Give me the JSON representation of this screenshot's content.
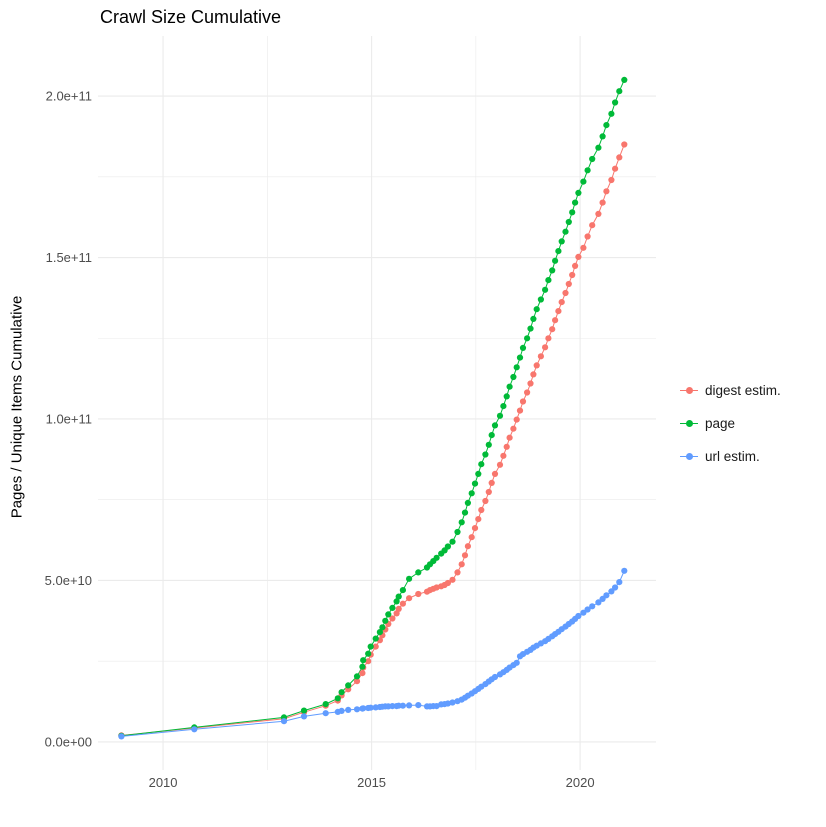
{
  "chart_data": {
    "type": "line",
    "title": "Crawl Size Cumulative",
    "xlabel": "",
    "ylabel": "Pages / Unique Items Cumulative",
    "grid": true,
    "legend_position": "right",
    "grid_color": "#ebebeb",
    "values_unit": "1e9 (billions of pages / unique items)",
    "xlim": [
      2008.44,
      2021.82
    ],
    "ylim_e9": [
      -8.7,
      218.6
    ],
    "x_axis": {
      "ticks": [
        {
          "value": 2010,
          "label": "2010"
        },
        {
          "value": 2015,
          "label": "2015"
        },
        {
          "value": 2020,
          "label": "2020"
        }
      ],
      "minor": [
        2012.5,
        2017.5
      ]
    },
    "y_axis": {
      "ticks": [
        {
          "value": 0,
          "label": "0.0e+00"
        },
        {
          "value": 50,
          "label": "5.0e+10"
        },
        {
          "value": 100,
          "label": "1.0e+11"
        },
        {
          "value": 150,
          "label": "1.5e+11"
        },
        {
          "value": 200,
          "label": "2.0e+11"
        }
      ],
      "minor": [
        25,
        75,
        125,
        175
      ]
    },
    "x": [
      2009.0,
      2010.75,
      2012.9,
      2013.38,
      2013.9,
      2014.19,
      2014.28,
      2014.44,
      2014.65,
      2014.78,
      2014.8,
      2014.92,
      2014.98,
      2015.1,
      2015.2,
      2015.26,
      2015.33,
      2015.4,
      2015.5,
      2015.6,
      2015.65,
      2015.75,
      2015.9,
      2016.12,
      2016.33,
      2016.4,
      2016.48,
      2016.56,
      2016.67,
      2016.75,
      2016.83,
      2016.94,
      2017.06,
      2017.16,
      2017.24,
      2017.31,
      2017.4,
      2017.48,
      2017.56,
      2017.63,
      2017.73,
      2017.81,
      2017.88,
      2017.96,
      2018.08,
      2018.16,
      2018.24,
      2018.31,
      2018.4,
      2018.48,
      2018.56,
      2018.63,
      2018.73,
      2018.81,
      2018.88,
      2018.96,
      2019.06,
      2019.16,
      2019.24,
      2019.33,
      2019.4,
      2019.48,
      2019.56,
      2019.65,
      2019.73,
      2019.81,
      2019.88,
      2019.96,
      2020.08,
      2020.18,
      2020.29,
      2020.44,
      2020.54,
      2020.63,
      2020.75,
      2020.84,
      2020.94,
      2021.06
    ],
    "series": [
      {
        "name": "digest estim.",
        "color": "#F8766D",
        "values": [
          2.0,
          4.3,
          7.2,
          9.2,
          11.2,
          12.8,
          14.4,
          16.3,
          18.8,
          21.3,
          23,
          25,
          27,
          29.5,
          31.5,
          33,
          34.8,
          36.5,
          38.2,
          39.8,
          41.2,
          42.8,
          44.5,
          45.8,
          46.5,
          47,
          47.4,
          47.8,
          48.2,
          48.6,
          49.2,
          50.2,
          52.5,
          55,
          57.8,
          60.6,
          63.4,
          66.2,
          69,
          71.8,
          74.6,
          77.4,
          80.2,
          83,
          85.8,
          88.6,
          91.4,
          94.2,
          97,
          99.8,
          102.6,
          105.4,
          108.2,
          111,
          113.8,
          116.6,
          119.4,
          122.2,
          125,
          127.8,
          130.6,
          133.4,
          136.2,
          139,
          141.8,
          144.6,
          147.4,
          150.2,
          153,
          156.5,
          160,
          163.5,
          167,
          170.5,
          174,
          177.5,
          181,
          185
        ]
      },
      {
        "name": "page",
        "color": "#00BA38",
        "values": [
          1.9,
          4.5,
          7.6,
          9.7,
          11.7,
          13.5,
          15.4,
          17.5,
          20.3,
          23.3,
          25.3,
          27.3,
          29.5,
          32,
          34,
          35.5,
          37.5,
          39.5,
          41.5,
          43.5,
          45,
          47,
          50.5,
          52.5,
          54,
          55,
          56,
          57,
          58.3,
          59.3,
          60.5,
          62,
          65,
          68,
          71,
          74,
          77,
          80,
          83,
          86,
          89,
          92,
          95,
          98,
          101,
          104,
          107,
          110,
          113,
          116,
          119,
          122,
          125,
          128,
          131,
          134,
          137,
          140,
          143,
          146,
          149,
          152,
          155,
          158,
          161,
          164,
          167,
          170,
          173.5,
          177,
          180.5,
          184,
          187.5,
          191,
          194.5,
          198,
          201.5,
          205
        ]
      },
      {
        "name": "url estim.",
        "color": "#619CFF",
        "values": [
          1.7,
          3.9,
          6.4,
          7.9,
          8.9,
          9.3,
          9.6,
          9.9,
          10.1,
          10.3,
          10.4,
          10.5,
          10.6,
          10.7,
          10.8,
          10.9,
          11.0,
          11.0,
          11.1,
          11.1,
          11.2,
          11.2,
          11.3,
          11.4,
          11.0,
          11.0,
          11.1,
          11.1,
          11.6,
          11.7,
          11.9,
          12.2,
          12.6,
          13.1,
          13.7,
          14.3,
          15.0,
          15.7,
          16.4,
          17.1,
          17.9,
          18.7,
          19.4,
          20.1,
          20.9,
          21.6,
          22.3,
          23.0,
          23.8,
          24.5,
          26.5,
          27.2,
          27.9,
          28.5,
          29.2,
          29.8,
          30.5,
          31.2,
          31.9,
          32.7,
          33.4,
          34.1,
          34.9,
          35.7,
          36.5,
          37.3,
          38.1,
          39.0,
          40.0,
          41.0,
          42.0,
          43.2,
          44.3,
          45.4,
          46.6,
          47.8,
          49.5,
          53.0
        ]
      }
    ]
  }
}
